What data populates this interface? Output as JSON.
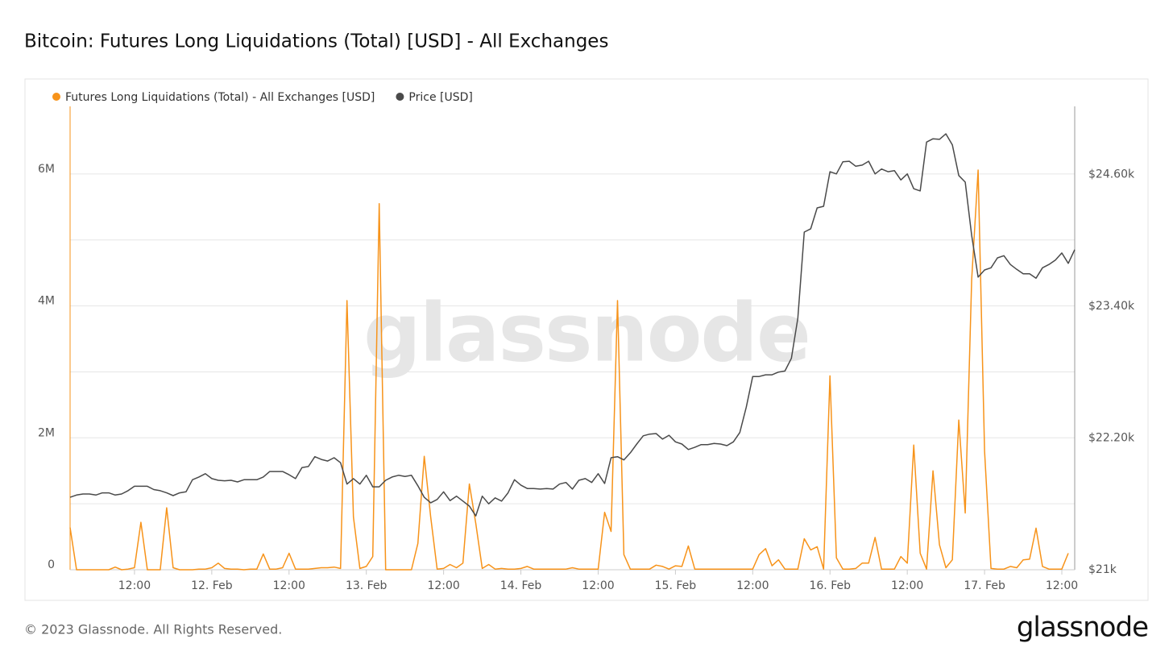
{
  "chart_data": {
    "type": "line",
    "title": "Bitcoin: Futures Long Liquidations (Total) [USD] - All Exchanges",
    "watermark": "glassnode",
    "footer": "© 2023 Glassnode. All Rights Reserved.",
    "logo": "glassnode",
    "grid": true,
    "minor_grid": true,
    "legend": "top-left",
    "categories": [
      null,
      null,
      null,
      null,
      null,
      null,
      null,
      null,
      null,
      null,
      "12:00",
      null,
      null,
      null,
      null,
      null,
      null,
      null,
      null,
      null,
      null,
      null,
      "12. Feb",
      null,
      null,
      null,
      null,
      null,
      null,
      null,
      null,
      null,
      null,
      null,
      "12:00",
      null,
      null,
      null,
      null,
      null,
      null,
      null,
      null,
      null,
      null,
      null,
      "13. Feb",
      null,
      null,
      null,
      null,
      null,
      null,
      null,
      null,
      null,
      null,
      null,
      "12:00",
      null,
      null,
      null,
      null,
      null,
      null,
      null,
      null,
      null,
      null,
      null,
      "14. Feb",
      null,
      null,
      null,
      null,
      null,
      null,
      null,
      null,
      null,
      null,
      null,
      "12:00",
      null,
      null,
      null,
      null,
      null,
      null,
      null,
      null,
      null,
      null,
      null,
      "15. Feb",
      null,
      null,
      null,
      null,
      null,
      null,
      null,
      null,
      null,
      null,
      null,
      "12:00",
      null,
      null,
      null,
      null,
      null,
      null,
      null,
      null,
      null,
      null,
      null,
      "16. Feb",
      null,
      null,
      null,
      null,
      null,
      null,
      null,
      null,
      null,
      null,
      null,
      "12:00",
      null,
      null,
      null,
      null,
      null,
      null,
      null,
      null,
      null,
      null,
      null,
      "17. Feb",
      null,
      null,
      null,
      null,
      null,
      null,
      null,
      null,
      null,
      null,
      null,
      "12:00",
      null,
      null
    ],
    "ylim": [
      0,
      7025000
    ],
    "yticks": [
      0,
      {
        "value": 2000000,
        "label": "2M"
      },
      {
        "value": 4000000,
        "label": "4M"
      },
      {
        "value": 6000000,
        "label": "6M"
      }
    ],
    "y2lim": [
      21000,
      25220
    ],
    "y2ticks": [
      {
        "value": 21000,
        "label": "$21k"
      },
      {
        "value": 22200,
        "label": "$22.20k"
      },
      {
        "value": 23400,
        "label": "$23.40k"
      },
      {
        "value": 24600,
        "label": "$24.60k"
      }
    ],
    "series": [
      {
        "name": "Futures Long Liquidations (Total) - All Exchanges [USD]",
        "color": "#f7931a",
        "axis": "y",
        "values": [
          640000,
          0,
          0,
          0,
          0,
          0,
          0,
          40000,
          0,
          10000,
          30000,
          720000,
          0,
          0,
          0,
          940000,
          30000,
          0,
          0,
          0,
          10000,
          10000,
          30000,
          100000,
          20000,
          10000,
          10000,
          0,
          10000,
          10000,
          240000,
          10000,
          10000,
          30000,
          250000,
          10000,
          10000,
          10000,
          20000,
          30000,
          30000,
          40000,
          20000,
          4080000,
          800000,
          20000,
          50000,
          200000,
          5550000,
          0,
          0,
          0,
          0,
          0,
          400000,
          1720000,
          800000,
          10000,
          20000,
          80000,
          30000,
          100000,
          1300000,
          700000,
          20000,
          80000,
          10000,
          20000,
          10000,
          10000,
          20000,
          50000,
          10000,
          10000,
          10000,
          10000,
          10000,
          10000,
          30000,
          10000,
          10000,
          10000,
          10000,
          870000,
          580000,
          4080000,
          230000,
          10000,
          10000,
          10000,
          10000,
          70000,
          50000,
          10000,
          60000,
          50000,
          360000,
          10000,
          10000,
          10000,
          10000,
          10000,
          10000,
          10000,
          10000,
          10000,
          10000,
          230000,
          320000,
          60000,
          150000,
          10000,
          10000,
          10000,
          470000,
          300000,
          350000,
          10000,
          2940000,
          180000,
          10000,
          10000,
          20000,
          100000,
          100000,
          490000,
          10000,
          10000,
          10000,
          200000,
          100000,
          1890000,
          250000,
          10000,
          1500000,
          380000,
          30000,
          150000,
          2270000,
          860000,
          4400000,
          6060000,
          1800000,
          20000,
          10000,
          10000,
          50000,
          30000,
          150000,
          160000,
          630000,
          50000,
          10000,
          10000,
          10000,
          250000,
          null
        ]
      },
      {
        "name": "Price [USD]",
        "color": "#4a4a4a",
        "axis": "y2",
        "values": [
          21660,
          21680,
          21690,
          21690,
          21680,
          21700,
          21700,
          21680,
          21690,
          21720,
          21760,
          21760,
          21760,
          21730,
          21720,
          21700,
          21675,
          21700,
          21710,
          21820,
          21845,
          21875,
          21830,
          21815,
          21810,
          21815,
          21800,
          21820,
          21820,
          21820,
          21845,
          21895,
          21895,
          21895,
          21865,
          21830,
          21930,
          21940,
          22030,
          22005,
          21990,
          22020,
          21975,
          21780,
          21830,
          21780,
          21860,
          21755,
          21755,
          21815,
          21845,
          21860,
          21850,
          21860,
          21765,
          21660,
          21610,
          21640,
          21710,
          21630,
          21670,
          21625,
          21580,
          21490,
          21670,
          21600,
          21655,
          21625,
          21700,
          21820,
          21770,
          21740,
          21740,
          21735,
          21740,
          21735,
          21780,
          21795,
          21735,
          21815,
          21830,
          21795,
          21875,
          21785,
          22020,
          22030,
          22000,
          22065,
          22145,
          22220,
          22235,
          22240,
          22190,
          22225,
          22165,
          22145,
          22095,
          22115,
          22140,
          22140,
          22150,
          22145,
          22130,
          22165,
          22250,
          22480,
          22760,
          22760,
          22775,
          22775,
          22800,
          22810,
          22925,
          23290,
          24075,
          24105,
          24295,
          24310,
          24625,
          24605,
          24715,
          24720,
          24675,
          24685,
          24720,
          24605,
          24650,
          24625,
          24635,
          24550,
          24605,
          24470,
          24450,
          24895,
          24925,
          24920,
          24970,
          24870,
          24590,
          24530,
          24045,
          23665,
          23730,
          23750,
          23840,
          23860,
          23780,
          23735,
          23695,
          23695,
          23655,
          23750,
          23780,
          23820,
          23885,
          23790,
          23915
        ]
      }
    ]
  }
}
